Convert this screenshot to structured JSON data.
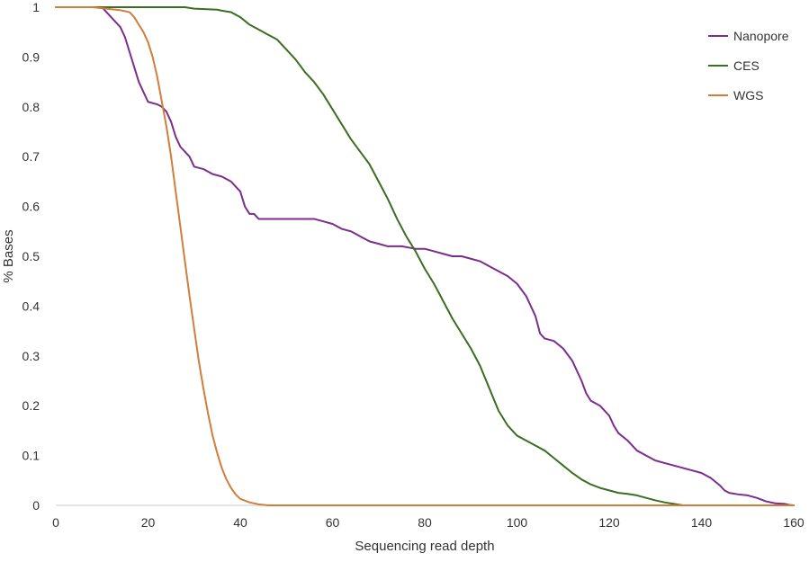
{
  "chart_data": {
    "type": "line",
    "title": "",
    "xlabel": "Sequencing read depth",
    "ylabel": "% Bases",
    "xlim": [
      0,
      160
    ],
    "ylim": [
      0,
      1
    ],
    "x_ticks": [
      0,
      20,
      40,
      60,
      80,
      100,
      120,
      140,
      160
    ],
    "y_ticks": [
      0,
      0.1,
      0.2,
      0.3,
      0.4,
      0.5,
      0.6,
      0.7,
      0.8,
      0.9,
      1
    ],
    "grid": false,
    "legend_position": "top-right",
    "series": [
      {
        "name": "Nanopore",
        "color": "#7B2D8E",
        "points": [
          [
            0,
            1
          ],
          [
            10,
            1
          ],
          [
            11,
            0.99
          ],
          [
            12,
            0.98
          ],
          [
            13,
            0.97
          ],
          [
            14,
            0.96
          ],
          [
            15,
            0.94
          ],
          [
            16,
            0.91
          ],
          [
            17,
            0.88
          ],
          [
            18,
            0.85
          ],
          [
            19,
            0.83
          ],
          [
            20,
            0.81
          ],
          [
            22,
            0.805
          ],
          [
            23,
            0.8
          ],
          [
            24,
            0.79
          ],
          [
            25,
            0.77
          ],
          [
            26,
            0.74
          ],
          [
            27,
            0.72
          ],
          [
            28,
            0.71
          ],
          [
            29,
            0.7
          ],
          [
            30,
            0.68
          ],
          [
            32,
            0.675
          ],
          [
            34,
            0.665
          ],
          [
            36,
            0.66
          ],
          [
            37,
            0.655
          ],
          [
            38,
            0.65
          ],
          [
            39,
            0.64
          ],
          [
            40,
            0.63
          ],
          [
            41,
            0.6
          ],
          [
            42,
            0.585
          ],
          [
            43,
            0.585
          ],
          [
            44,
            0.575
          ],
          [
            48,
            0.575
          ],
          [
            52,
            0.575
          ],
          [
            56,
            0.575
          ],
          [
            58,
            0.57
          ],
          [
            60,
            0.565
          ],
          [
            62,
            0.555
          ],
          [
            64,
            0.55
          ],
          [
            66,
            0.54
          ],
          [
            68,
            0.53
          ],
          [
            70,
            0.525
          ],
          [
            72,
            0.52
          ],
          [
            75,
            0.52
          ],
          [
            78,
            0.515
          ],
          [
            80,
            0.515
          ],
          [
            82,
            0.51
          ],
          [
            84,
            0.505
          ],
          [
            86,
            0.5
          ],
          [
            88,
            0.5
          ],
          [
            90,
            0.495
          ],
          [
            92,
            0.49
          ],
          [
            94,
            0.48
          ],
          [
            96,
            0.47
          ],
          [
            98,
            0.46
          ],
          [
            100,
            0.445
          ],
          [
            102,
            0.42
          ],
          [
            103,
            0.4
          ],
          [
            104,
            0.38
          ],
          [
            105,
            0.345
          ],
          [
            106,
            0.335
          ],
          [
            108,
            0.33
          ],
          [
            110,
            0.315
          ],
          [
            112,
            0.29
          ],
          [
            113,
            0.27
          ],
          [
            114,
            0.25
          ],
          [
            115,
            0.225
          ],
          [
            116,
            0.21
          ],
          [
            118,
            0.2
          ],
          [
            120,
            0.18
          ],
          [
            121,
            0.16
          ],
          [
            122,
            0.145
          ],
          [
            124,
            0.13
          ],
          [
            126,
            0.11
          ],
          [
            128,
            0.1
          ],
          [
            130,
            0.09
          ],
          [
            132,
            0.085
          ],
          [
            134,
            0.08
          ],
          [
            136,
            0.075
          ],
          [
            138,
            0.07
          ],
          [
            140,
            0.065
          ],
          [
            142,
            0.055
          ],
          [
            144,
            0.04
          ],
          [
            145,
            0.03
          ],
          [
            146,
            0.025
          ],
          [
            148,
            0.022
          ],
          [
            150,
            0.02
          ],
          [
            152,
            0.015
          ],
          [
            154,
            0.008
          ],
          [
            156,
            0.004
          ],
          [
            158,
            0.003
          ],
          [
            159,
            0.001
          ],
          [
            160,
            0.0
          ]
        ]
      },
      {
        "name": "CES",
        "color": "#3B6E22",
        "points": [
          [
            0,
            1
          ],
          [
            28,
            1
          ],
          [
            30,
            0.997
          ],
          [
            35,
            0.995
          ],
          [
            36,
            0.993
          ],
          [
            38,
            0.99
          ],
          [
            39,
            0.985
          ],
          [
            40,
            0.98
          ],
          [
            42,
            0.965
          ],
          [
            44,
            0.955
          ],
          [
            46,
            0.945
          ],
          [
            48,
            0.935
          ],
          [
            50,
            0.915
          ],
          [
            52,
            0.895
          ],
          [
            54,
            0.87
          ],
          [
            56,
            0.85
          ],
          [
            58,
            0.825
          ],
          [
            60,
            0.795
          ],
          [
            62,
            0.765
          ],
          [
            64,
            0.735
          ],
          [
            66,
            0.71
          ],
          [
            68,
            0.685
          ],
          [
            70,
            0.65
          ],
          [
            72,
            0.615
          ],
          [
            74,
            0.575
          ],
          [
            76,
            0.54
          ],
          [
            78,
            0.51
          ],
          [
            80,
            0.475
          ],
          [
            82,
            0.445
          ],
          [
            84,
            0.41
          ],
          [
            86,
            0.375
          ],
          [
            88,
            0.345
          ],
          [
            90,
            0.315
          ],
          [
            92,
            0.28
          ],
          [
            94,
            0.235
          ],
          [
            96,
            0.19
          ],
          [
            98,
            0.16
          ],
          [
            100,
            0.14
          ],
          [
            102,
            0.13
          ],
          [
            104,
            0.12
          ],
          [
            106,
            0.11
          ],
          [
            108,
            0.095
          ],
          [
            110,
            0.08
          ],
          [
            112,
            0.065
          ],
          [
            114,
            0.052
          ],
          [
            116,
            0.042
          ],
          [
            118,
            0.035
          ],
          [
            120,
            0.03
          ],
          [
            122,
            0.025
          ],
          [
            124,
            0.023
          ],
          [
            126,
            0.02
          ],
          [
            128,
            0.015
          ],
          [
            130,
            0.01
          ],
          [
            132,
            0.006
          ],
          [
            134,
            0.003
          ],
          [
            136,
            0.0
          ],
          [
            160,
            0.0
          ]
        ]
      },
      {
        "name": "WGS",
        "color": "#D27D3A",
        "points": [
          [
            0,
            1
          ],
          [
            8,
            1
          ],
          [
            10,
            0.998
          ],
          [
            12,
            0.996
          ],
          [
            14,
            0.994
          ],
          [
            16,
            0.99
          ],
          [
            17,
            0.98
          ],
          [
            18,
            0.965
          ],
          [
            19,
            0.95
          ],
          [
            20,
            0.93
          ],
          [
            21,
            0.9
          ],
          [
            22,
            0.86
          ],
          [
            23,
            0.81
          ],
          [
            24,
            0.76
          ],
          [
            25,
            0.7
          ],
          [
            26,
            0.63
          ],
          [
            27,
            0.56
          ],
          [
            28,
            0.49
          ],
          [
            29,
            0.42
          ],
          [
            30,
            0.355
          ],
          [
            31,
            0.29
          ],
          [
            32,
            0.235
          ],
          [
            33,
            0.185
          ],
          [
            34,
            0.14
          ],
          [
            35,
            0.105
          ],
          [
            36,
            0.075
          ],
          [
            37,
            0.052
          ],
          [
            38,
            0.035
          ],
          [
            39,
            0.022
          ],
          [
            40,
            0.013
          ],
          [
            42,
            0.006
          ],
          [
            44,
            0.002
          ],
          [
            46,
            0.0
          ],
          [
            160,
            0.0
          ]
        ]
      }
    ]
  }
}
